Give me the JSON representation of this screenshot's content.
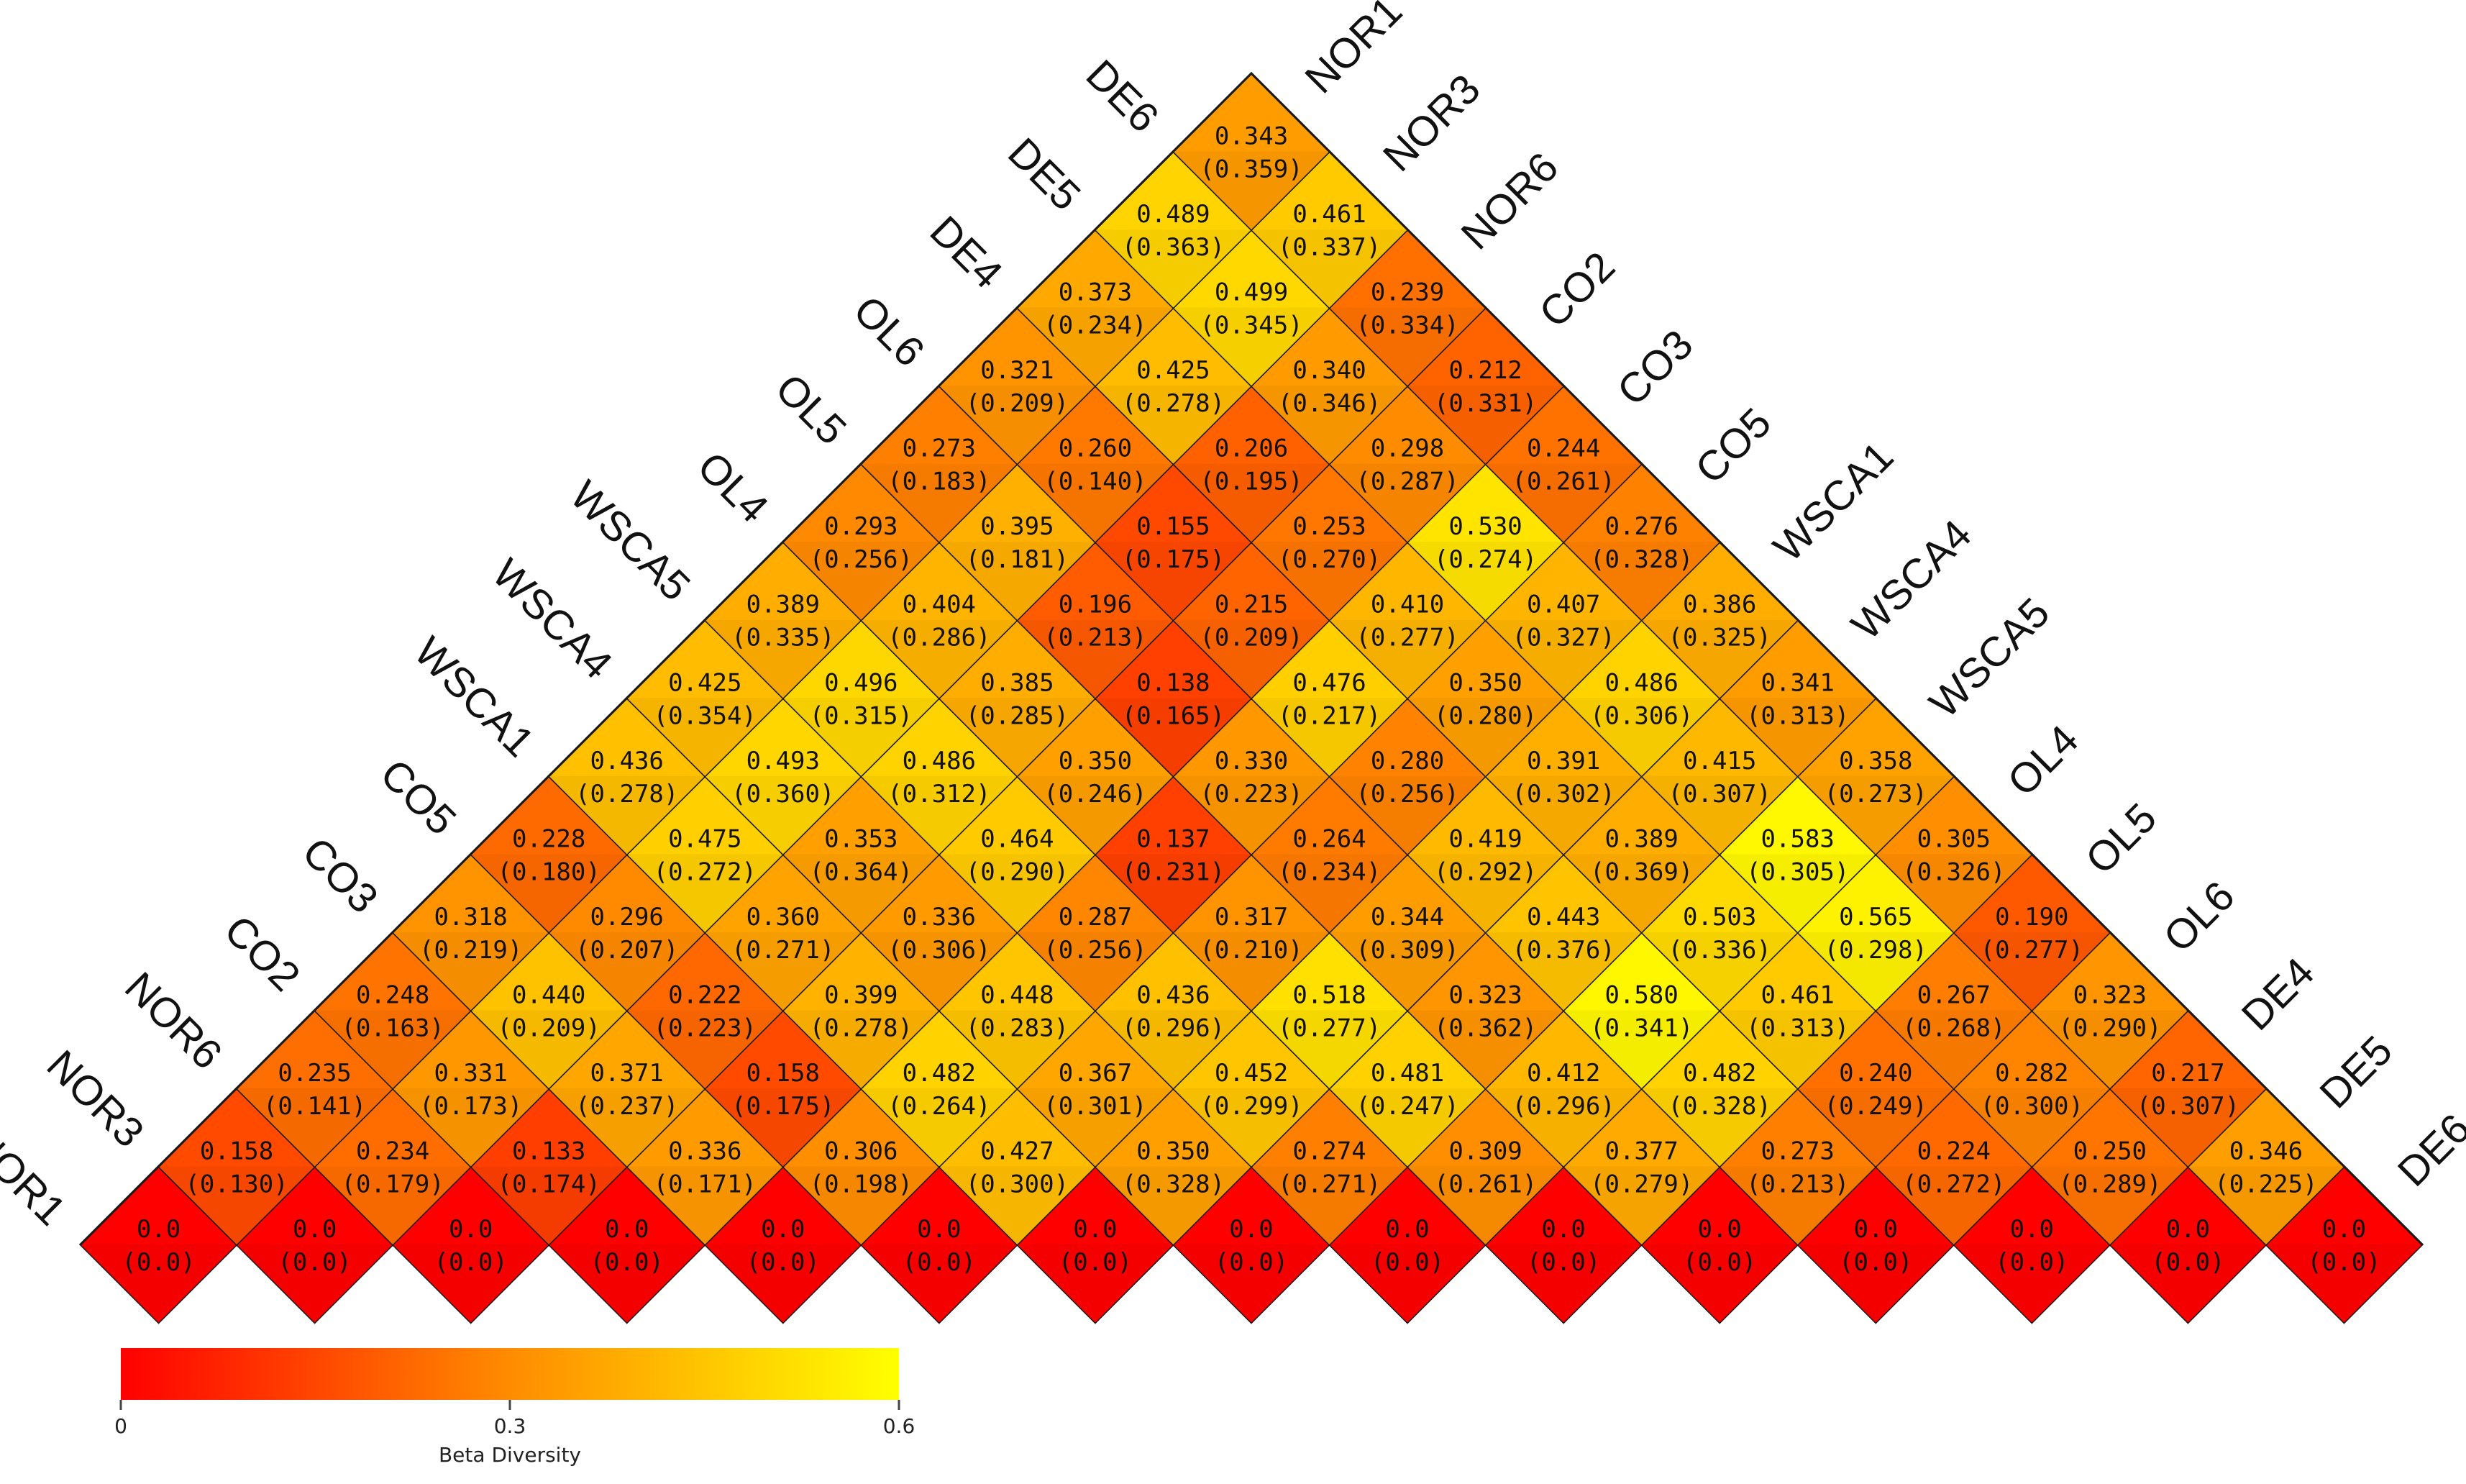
{
  "chart_data": {
    "type": "heatmap",
    "layout": "triangular",
    "labels": [
      "NOR1",
      "NOR3",
      "NOR6",
      "CO2",
      "CO3",
      "CO5",
      "WSCA1",
      "WSCA4",
      "WSCA5",
      "OL4",
      "OL5",
      "OL6",
      "DE4",
      "DE5",
      "DE6"
    ],
    "rows": [
      [
        [
          "0.0",
          "(0.0)"
        ],
        [
          "0.0",
          "(0.0)"
        ],
        [
          "0.0",
          "(0.0)"
        ],
        [
          "0.0",
          "(0.0)"
        ],
        [
          "0.0",
          "(0.0)"
        ],
        [
          "0.0",
          "(0.0)"
        ],
        [
          "0.0",
          "(0.0)"
        ],
        [
          "0.0",
          "(0.0)"
        ],
        [
          "0.0",
          "(0.0)"
        ],
        [
          "0.0",
          "(0.0)"
        ],
        [
          "0.0",
          "(0.0)"
        ],
        [
          "0.0",
          "(0.0)"
        ],
        [
          "0.0",
          "(0.0)"
        ],
        [
          "0.0",
          "(0.0)"
        ],
        [
          "0.0",
          "(0.0)"
        ]
      ],
      [
        [
          "0.158",
          "(0.130)"
        ],
        [
          "0.234",
          "(0.179)"
        ],
        [
          "0.133",
          "(0.174)"
        ],
        [
          "0.336",
          "(0.171)"
        ],
        [
          "0.306",
          "(0.198)"
        ],
        [
          "0.427",
          "(0.300)"
        ],
        [
          "0.350",
          "(0.328)"
        ],
        [
          "0.274",
          "(0.271)"
        ],
        [
          "0.309",
          "(0.261)"
        ],
        [
          "0.377",
          "(0.279)"
        ],
        [
          "0.273",
          "(0.213)"
        ],
        [
          "0.224",
          "(0.272)"
        ],
        [
          "0.250",
          "(0.289)"
        ],
        [
          "0.346",
          "(0.225)"
        ]
      ],
      [
        [
          "0.235",
          "(0.141)"
        ],
        [
          "0.331",
          "(0.173)"
        ],
        [
          "0.371",
          "(0.237)"
        ],
        [
          "0.158",
          "(0.175)"
        ],
        [
          "0.482",
          "(0.264)"
        ],
        [
          "0.367",
          "(0.301)"
        ],
        [
          "0.452",
          "(0.299)"
        ],
        [
          "0.481",
          "(0.247)"
        ],
        [
          "0.412",
          "(0.296)"
        ],
        [
          "0.482",
          "(0.328)"
        ],
        [
          "0.240",
          "(0.249)"
        ],
        [
          "0.282",
          "(0.300)"
        ],
        [
          "0.217",
          "(0.307)"
        ]
      ],
      [
        [
          "0.248",
          "(0.163)"
        ],
        [
          "0.440",
          "(0.209)"
        ],
        [
          "0.222",
          "(0.223)"
        ],
        [
          "0.399",
          "(0.278)"
        ],
        [
          "0.448",
          "(0.283)"
        ],
        [
          "0.436",
          "(0.296)"
        ],
        [
          "0.518",
          "(0.277)"
        ],
        [
          "0.323",
          "(0.362)"
        ],
        [
          "0.580",
          "(0.341)"
        ],
        [
          "0.461",
          "(0.313)"
        ],
        [
          "0.267",
          "(0.268)"
        ],
        [
          "0.323",
          "(0.290)"
        ]
      ],
      [
        [
          "0.318",
          "(0.219)"
        ],
        [
          "0.296",
          "(0.207)"
        ],
        [
          "0.360",
          "(0.271)"
        ],
        [
          "0.336",
          "(0.306)"
        ],
        [
          "0.287",
          "(0.256)"
        ],
        [
          "0.317",
          "(0.210)"
        ],
        [
          "0.344",
          "(0.309)"
        ],
        [
          "0.443",
          "(0.376)"
        ],
        [
          "0.503",
          "(0.336)"
        ],
        [
          "0.565",
          "(0.298)"
        ],
        [
          "0.190",
          "(0.277)"
        ]
      ],
      [
        [
          "0.228",
          "(0.180)"
        ],
        [
          "0.475",
          "(0.272)"
        ],
        [
          "0.353",
          "(0.364)"
        ],
        [
          "0.464",
          "(0.290)"
        ],
        [
          "0.137",
          "(0.231)"
        ],
        [
          "0.264",
          "(0.234)"
        ],
        [
          "0.419",
          "(0.292)"
        ],
        [
          "0.389",
          "(0.369)"
        ],
        [
          "0.583",
          "(0.305)"
        ],
        [
          "0.305",
          "(0.326)"
        ]
      ],
      [
        [
          "0.436",
          "(0.278)"
        ],
        [
          "0.493",
          "(0.360)"
        ],
        [
          "0.486",
          "(0.312)"
        ],
        [
          "0.350",
          "(0.246)"
        ],
        [
          "0.330",
          "(0.223)"
        ],
        [
          "0.280",
          "(0.256)"
        ],
        [
          "0.391",
          "(0.302)"
        ],
        [
          "0.415",
          "(0.307)"
        ],
        [
          "0.358",
          "(0.273)"
        ]
      ],
      [
        [
          "0.425",
          "(0.354)"
        ],
        [
          "0.496",
          "(0.315)"
        ],
        [
          "0.385",
          "(0.285)"
        ],
        [
          "0.138",
          "(0.165)"
        ],
        [
          "0.476",
          "(0.217)"
        ],
        [
          "0.350",
          "(0.280)"
        ],
        [
          "0.486",
          "(0.306)"
        ],
        [
          "0.341",
          "(0.313)"
        ]
      ],
      [
        [
          "0.389",
          "(0.335)"
        ],
        [
          "0.404",
          "(0.286)"
        ],
        [
          "0.196",
          "(0.213)"
        ],
        [
          "0.215",
          "(0.209)"
        ],
        [
          "0.410",
          "(0.277)"
        ],
        [
          "0.407",
          "(0.327)"
        ],
        [
          "0.386",
          "(0.325)"
        ]
      ],
      [
        [
          "0.293",
          "(0.256)"
        ],
        [
          "0.395",
          "(0.181)"
        ],
        [
          "0.155",
          "(0.175)"
        ],
        [
          "0.253",
          "(0.270)"
        ],
        [
          "0.530",
          "(0.274)"
        ],
        [
          "0.276",
          "(0.328)"
        ]
      ],
      [
        [
          "0.273",
          "(0.183)"
        ],
        [
          "0.260",
          "(0.140)"
        ],
        [
          "0.206",
          "(0.195)"
        ],
        [
          "0.298",
          "(0.287)"
        ],
        [
          "0.244",
          "(0.261)"
        ]
      ],
      [
        [
          "0.321",
          "(0.209)"
        ],
        [
          "0.425",
          "(0.278)"
        ],
        [
          "0.340",
          "(0.346)"
        ],
        [
          "0.212",
          "(0.331)"
        ]
      ],
      [
        [
          "0.373",
          "(0.234)"
        ],
        [
          "0.499",
          "(0.345)"
        ],
        [
          "0.239",
          "(0.334)"
        ]
      ],
      [
        [
          "0.489",
          "(0.363)"
        ],
        [
          "0.461",
          "(0.337)"
        ]
      ],
      [
        [
          "0.343",
          "(0.359)"
        ]
      ]
    ],
    "colorbar": {
      "min": 0,
      "max": 0.6,
      "ticks": [
        "0",
        "0.3",
        "0.6"
      ],
      "label": "Beta Diversity",
      "colors": [
        "#ff0000",
        "#ff8c00",
        "#ffff00"
      ]
    }
  }
}
